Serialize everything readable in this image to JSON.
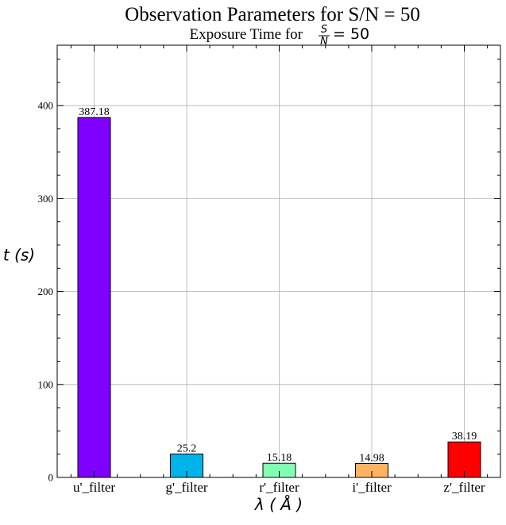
{
  "chart_data": {
    "type": "bar",
    "title": "Observation Parameters for S/N = 50",
    "subtitle_prefix": "Exposure Time for",
    "subtitle_fraction_num": "S",
    "subtitle_fraction_den": "N",
    "subtitle_suffix": "= 50",
    "xlabel": "λ ( Å )",
    "ylabel": "t (s)",
    "categories": [
      "u'_filter",
      "g'_filter",
      "r'_filter",
      "i'_filter",
      "z'_filter"
    ],
    "values": [
      387.18,
      25.2,
      15.18,
      14.98,
      38.19
    ],
    "data_labels": [
      "387.18",
      "25.2",
      "15.18",
      "14.98",
      "38.19"
    ],
    "colors": [
      "#7f00ff",
      "#00b4eb",
      "#80ffb4",
      "#ffb360",
      "#ff0000"
    ],
    "ylim": [
      0,
      465
    ],
    "yticks": [
      0,
      100,
      200,
      300,
      400
    ],
    "ytick_labels": [
      "0",
      "100",
      "200",
      "300",
      "400"
    ],
    "grid": true
  }
}
